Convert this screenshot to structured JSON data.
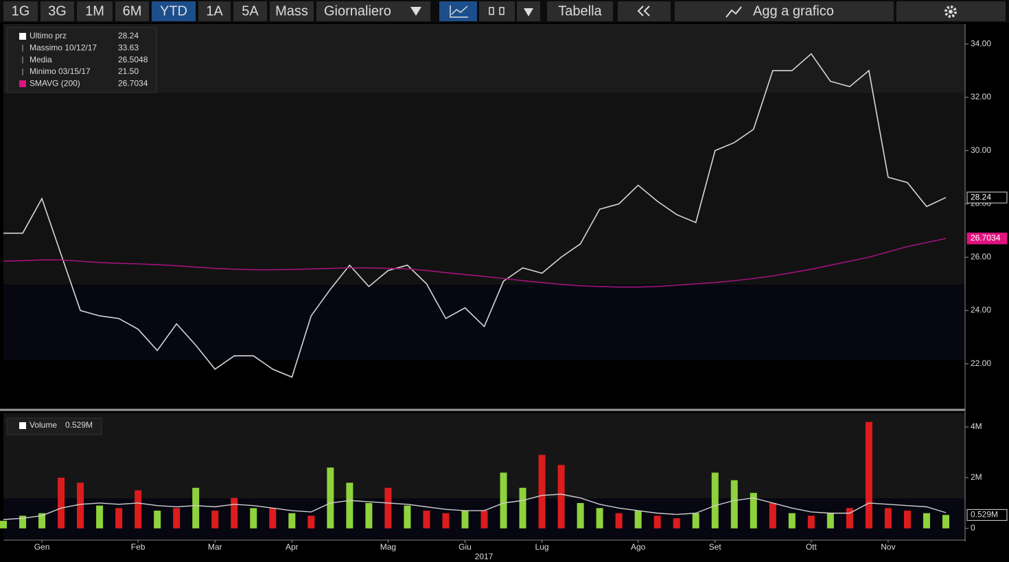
{
  "toolbar": {
    "periods": [
      "1G",
      "3G",
      "1M",
      "6M",
      "YTD",
      "1A",
      "5A",
      "Mass"
    ],
    "selected": 4,
    "frequency": "Giornaliero",
    "table": "Tabella",
    "add_to_chart": "Agg a grafico"
  },
  "chart_data": [
    {
      "type": "line",
      "series": [
        {
          "name": "Ultimo prz",
          "color": "#d8d8d8",
          "values": [
            26.9,
            26.9,
            28.2,
            26.1,
            24.0,
            23.8,
            23.7,
            23.3,
            22.5,
            23.5,
            22.7,
            21.8,
            22.3,
            22.3,
            21.8,
            21.5,
            23.8,
            24.8,
            25.7,
            24.9,
            25.5,
            25.7,
            25.0,
            23.7,
            24.1,
            23.4,
            25.1,
            25.6,
            25.4,
            26.0,
            26.5,
            27.8,
            28.0,
            28.7,
            28.1,
            27.6,
            27.3,
            30.0,
            30.3,
            30.8,
            33.0,
            33.0,
            33.63,
            32.6,
            32.4,
            33.0,
            29.0,
            28.8,
            27.9,
            28.24
          ]
        },
        {
          "name": "SMAVG (200)",
          "color": "#a3127c",
          "tag_color": "#e0137f",
          "values": [
            25.85,
            25.87,
            25.9,
            25.9,
            25.85,
            25.8,
            25.77,
            25.75,
            25.72,
            25.68,
            25.63,
            25.58,
            25.55,
            25.53,
            25.53,
            25.54,
            25.56,
            25.58,
            25.6,
            25.6,
            25.58,
            25.56,
            25.5,
            25.42,
            25.35,
            25.28,
            25.2,
            25.12,
            25.05,
            24.98,
            24.93,
            24.9,
            24.88,
            24.88,
            24.9,
            24.95,
            25.0,
            25.05,
            25.12,
            25.2,
            25.3,
            25.42,
            25.55,
            25.7,
            25.85,
            26.0,
            26.2,
            26.4,
            26.55,
            26.7034
          ]
        }
      ],
      "legend_stats": [
        {
          "label": "Massimo 10/12/17",
          "value": "33.63"
        },
        {
          "label": "Media",
          "value": "26.5048"
        },
        {
          "label": "Minimo 03/15/17",
          "value": "21.50"
        }
      ],
      "ylim": [
        20.35,
        34.75
      ],
      "yticks": [
        {
          "value": 22,
          "label": "22.00"
        },
        {
          "value": 24,
          "label": "24.00"
        },
        {
          "value": 26,
          "label": "26.00"
        },
        {
          "value": 28,
          "label": "28.00"
        },
        {
          "value": 30,
          "label": "30.00"
        },
        {
          "value": 32,
          "label": "32.00"
        },
        {
          "value": 34,
          "label": "34.00"
        }
      ]
    },
    {
      "type": "bar",
      "name": "Volume",
      "last_value_label": "0.529M",
      "values": [
        0.3,
        0.5,
        0.6,
        2.0,
        1.8,
        0.9,
        0.8,
        1.5,
        0.7,
        0.8,
        1.6,
        0.7,
        1.2,
        0.8,
        0.8,
        0.6,
        0.5,
        2.4,
        1.8,
        1.0,
        1.6,
        0.9,
        0.7,
        0.6,
        0.7,
        0.7,
        2.2,
        1.6,
        2.9,
        2.5,
        1.0,
        0.8,
        0.6,
        0.7,
        0.5,
        0.4,
        0.6,
        2.2,
        1.9,
        1.4,
        1.0,
        0.6,
        0.5,
        0.6,
        0.8,
        4.2,
        0.8,
        0.7,
        0.6,
        0.529
      ],
      "colors": [
        "#8ed23c",
        "#8ed23c",
        "#8ed23c",
        "#dc1c1c",
        "#dc1c1c",
        "#8ed23c",
        "#dc1c1c",
        "#dc1c1c",
        "#8ed23c",
        "#dc1c1c",
        "#8ed23c",
        "#dc1c1c",
        "#dc1c1c",
        "#8ed23c",
        "#dc1c1c",
        "#8ed23c",
        "#dc1c1c",
        "#8ed23c",
        "#8ed23c",
        "#8ed23c",
        "#dc1c1c",
        "#8ed23c",
        "#dc1c1c",
        "#dc1c1c",
        "#8ed23c",
        "#dc1c1c",
        "#8ed23c",
        "#8ed23c",
        "#dc1c1c",
        "#dc1c1c",
        "#8ed23c",
        "#8ed23c",
        "#dc1c1c",
        "#8ed23c",
        "#dc1c1c",
        "#dc1c1c",
        "#8ed23c",
        "#8ed23c",
        "#8ed23c",
        "#8ed23c",
        "#dc1c1c",
        "#8ed23c",
        "#dc1c1c",
        "#8ed23c",
        "#dc1c1c",
        "#dc1c1c",
        "#dc1c1c",
        "#dc1c1c",
        "#8ed23c",
        "#8ed23c"
      ],
      "average_values": [
        0.35,
        0.4,
        0.5,
        0.8,
        0.95,
        1.0,
        0.95,
        1.0,
        0.9,
        0.85,
        0.9,
        0.85,
        0.95,
        0.9,
        0.8,
        0.7,
        0.65,
        1.0,
        1.1,
        1.05,
        1.0,
        0.95,
        0.85,
        0.75,
        0.7,
        0.7,
        1.0,
        1.1,
        1.3,
        1.35,
        1.2,
        0.95,
        0.8,
        0.7,
        0.6,
        0.55,
        0.6,
        0.9,
        1.1,
        1.2,
        1.0,
        0.8,
        0.65,
        0.6,
        0.6,
        1.0,
        0.95,
        0.9,
        0.85,
        0.62
      ],
      "average_color": "#cfcfcf",
      "categories": [
        null,
        null,
        "Gen",
        null,
        null,
        null,
        null,
        "Feb",
        null,
        null,
        null,
        "Mar",
        null,
        null,
        null,
        "Apr",
        null,
        null,
        null,
        null,
        "Mag",
        null,
        null,
        null,
        "Giu",
        null,
        null,
        null,
        "Lug",
        null,
        null,
        null,
        null,
        "Ago",
        null,
        null,
        null,
        "Set",
        null,
        null,
        null,
        null,
        "Ott",
        null,
        null,
        null,
        "Nov",
        null,
        null,
        null
      ],
      "xlabel": "2017",
      "ylim": [
        -0.38,
        4.54
      ],
      "yticks": [
        0,
        {
          "value": 2,
          "label": "2M"
        },
        {
          "value": 4,
          "label": "4M"
        }
      ]
    }
  ]
}
